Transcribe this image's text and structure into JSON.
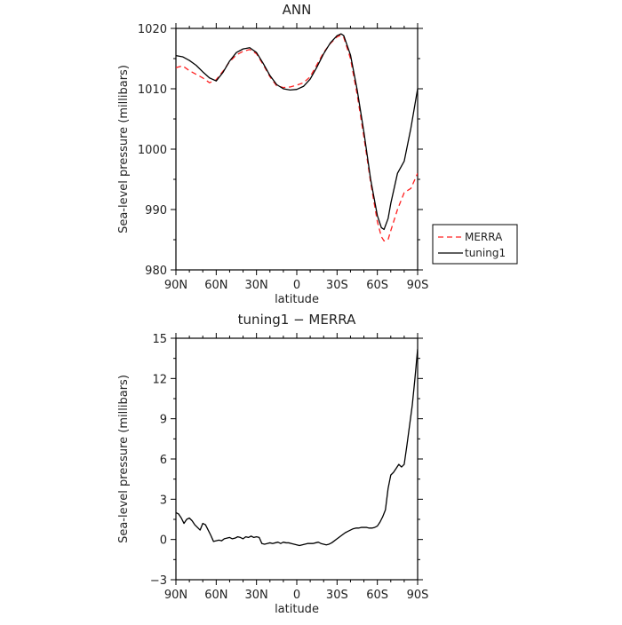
{
  "chart_data": [
    {
      "type": "line",
      "title": "ANN",
      "xlabel": "latitude",
      "ylabel": "Sea-level pressure (millibars)",
      "xlim": [
        90,
        -90
      ],
      "ylim": [
        980,
        1020
      ],
      "x_ticks": [
        90,
        60,
        30,
        0,
        -30,
        -60,
        -90
      ],
      "x_tick_labels": [
        "90N",
        "60N",
        "30N",
        "0",
        "30S",
        "60S",
        "90S"
      ],
      "y_ticks": [
        980,
        990,
        1000,
        1010,
        1020
      ],
      "y_tick_labels": [
        "980",
        "990",
        "1000",
        "1010",
        "1020"
      ],
      "legend_position": "right",
      "series": [
        {
          "name": "MERRA",
          "color": "#ff2020",
          "dash": true,
          "x": [
            90,
            85,
            80,
            75,
            70,
            65,
            60,
            55,
            50,
            45,
            40,
            35,
            30,
            25,
            20,
            15,
            10,
            5,
            0,
            -5,
            -10,
            -15,
            -20,
            -25,
            -30,
            -33,
            -35,
            -40,
            -45,
            -50,
            -55,
            -60,
            -63,
            -65,
            -68,
            -70,
            -75,
            -80,
            -85,
            -90
          ],
          "values": [
            1013.5,
            1013.8,
            1013.0,
            1012.4,
            1011.8,
            1011.0,
            1011.5,
            1012.9,
            1014.5,
            1015.6,
            1016.2,
            1016.5,
            1015.8,
            1014.0,
            1012.0,
            1010.5,
            1010.2,
            1010.3,
            1010.6,
            1011.0,
            1012.0,
            1014.0,
            1016.0,
            1017.5,
            1018.6,
            1018.9,
            1018.5,
            1015.0,
            1009.0,
            1002.0,
            994.5,
            988.0,
            985.5,
            984.8,
            985.0,
            986.5,
            990.0,
            992.8,
            993.5,
            996.0
          ]
        },
        {
          "name": "tuning1",
          "color": "#000000",
          "dash": false,
          "x": [
            90,
            85,
            80,
            75,
            70,
            65,
            60,
            55,
            50,
            45,
            40,
            35,
            30,
            25,
            20,
            15,
            10,
            5,
            0,
            -5,
            -10,
            -15,
            -20,
            -25,
            -30,
            -33,
            -35,
            -40,
            -45,
            -50,
            -55,
            -60,
            -63,
            -65,
            -68,
            -70,
            -75,
            -80,
            -85,
            -90
          ],
          "values": [
            1015.5,
            1015.3,
            1014.7,
            1013.9,
            1012.8,
            1011.8,
            1011.3,
            1012.7,
            1014.6,
            1016.0,
            1016.6,
            1016.8,
            1016.0,
            1014.2,
            1012.2,
            1010.7,
            1010.0,
            1009.8,
            1009.9,
            1010.4,
            1011.6,
            1013.6,
            1015.8,
            1017.6,
            1018.8,
            1019.1,
            1018.8,
            1015.6,
            1009.8,
            1002.8,
            995.0,
            989.0,
            987.0,
            986.7,
            988.5,
            991.0,
            996.0,
            998.0,
            1003.5,
            1010.0
          ]
        }
      ]
    },
    {
      "type": "line",
      "title": "tuning1 − MERRA",
      "xlabel": "latitude",
      "ylabel": "Sea-level pressure (millibars)",
      "xlim": [
        90,
        -90
      ],
      "ylim": [
        -3,
        15
      ],
      "x_ticks": [
        90,
        60,
        30,
        0,
        -30,
        -60,
        -90
      ],
      "x_tick_labels": [
        "90N",
        "60N",
        "30N",
        "0",
        "30S",
        "60S",
        "90S"
      ],
      "y_ticks": [
        -3,
        0,
        3,
        6,
        9,
        12,
        15
      ],
      "y_tick_labels": [
        "−3",
        "0",
        "3",
        "6",
        "9",
        "12",
        "15"
      ],
      "series": [
        {
          "color": "#000000",
          "dash": false,
          "x": [
            90,
            88,
            86,
            84,
            82,
            80,
            78,
            76,
            74,
            72,
            70,
            68,
            66,
            64,
            62,
            60,
            58,
            56,
            54,
            52,
            50,
            48,
            46,
            44,
            42,
            40,
            38,
            36,
            34,
            32,
            30,
            28,
            26,
            24,
            22,
            20,
            18,
            16,
            14,
            12,
            10,
            8,
            6,
            4,
            2,
            0,
            -2,
            -4,
            -6,
            -8,
            -10,
            -12,
            -14,
            -16,
            -18,
            -20,
            -22,
            -24,
            -26,
            -28,
            -30,
            -32,
            -34,
            -36,
            -38,
            -40,
            -42,
            -44,
            -46,
            -48,
            -50,
            -52,
            -54,
            -56,
            -58,
            -60,
            -62,
            -64,
            -66,
            -68,
            -70,
            -72,
            -74,
            -76,
            -78,
            -80,
            -82,
            -84,
            -86,
            -88,
            -90
          ],
          "values": [
            2.0,
            1.9,
            1.6,
            1.2,
            1.5,
            1.6,
            1.4,
            1.1,
            0.9,
            0.7,
            1.2,
            1.1,
            0.7,
            0.3,
            -0.15,
            -0.1,
            -0.05,
            -0.1,
            0.05,
            0.1,
            0.15,
            0.05,
            0.1,
            0.2,
            0.15,
            0.05,
            0.2,
            0.15,
            0.25,
            0.15,
            0.2,
            0.15,
            -0.3,
            -0.35,
            -0.3,
            -0.25,
            -0.3,
            -0.25,
            -0.2,
            -0.3,
            -0.2,
            -0.25,
            -0.25,
            -0.3,
            -0.35,
            -0.4,
            -0.45,
            -0.4,
            -0.35,
            -0.3,
            -0.3,
            -0.3,
            -0.25,
            -0.2,
            -0.3,
            -0.35,
            -0.4,
            -0.35,
            -0.25,
            -0.1,
            0.05,
            0.2,
            0.35,
            0.5,
            0.6,
            0.7,
            0.8,
            0.85,
            0.85,
            0.9,
            0.9,
            0.9,
            0.85,
            0.85,
            0.9,
            1.0,
            1.3,
            1.7,
            2.2,
            3.8,
            4.8,
            5.0,
            5.3,
            5.6,
            5.4,
            5.6,
            7.0,
            8.5,
            10.0,
            12.0,
            14.2
          ]
        }
      ]
    }
  ]
}
